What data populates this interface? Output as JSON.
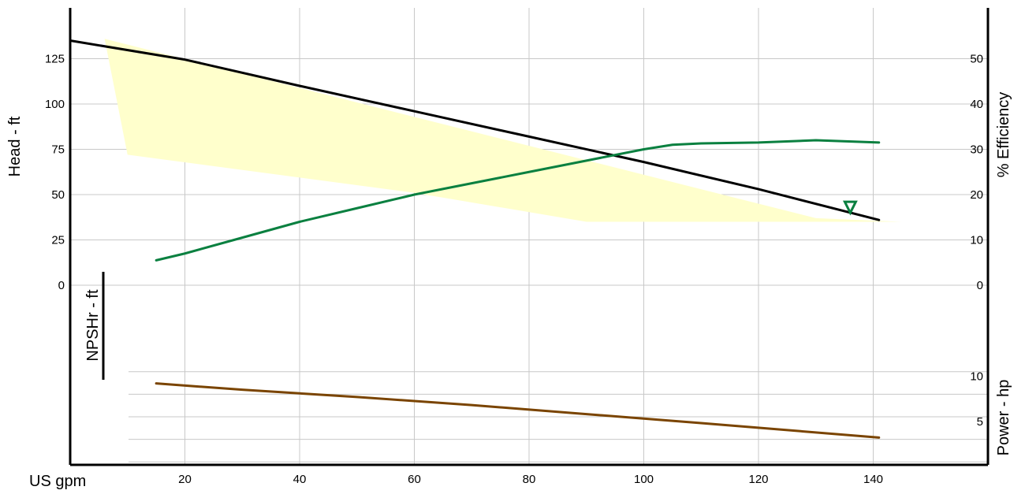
{
  "chart_data": {
    "type": "line",
    "x_axis": {
      "label": "US gpm",
      "range": [
        0,
        160
      ],
      "ticks": [
        20,
        40,
        60,
        80,
        100,
        120,
        140
      ]
    },
    "head_axis": {
      "label": "Head - ft",
      "range": [
        0,
        150
      ],
      "ticks": [
        0,
        25,
        50,
        75,
        100,
        125
      ]
    },
    "efficiency_axis": {
      "label": "% Efficiency",
      "range": [
        0,
        60
      ],
      "ticks": [
        0,
        10,
        20,
        30,
        40,
        50
      ]
    },
    "npshr_axis": {
      "label": "NPSHr - ft",
      "ticks": []
    },
    "power_axis": {
      "label": "Power - hp",
      "range": [
        0,
        15
      ],
      "ticks": [
        5,
        10
      ]
    },
    "grid": true,
    "operating_region": {
      "color": "#ffffcc",
      "points": [
        [
          6,
          136
        ],
        [
          10,
          72
        ],
        [
          60,
          51
        ],
        [
          90,
          35
        ],
        [
          145,
          35
        ],
        [
          130,
          37
        ]
      ]
    },
    "series": [
      {
        "axis": "head",
        "color": "#000000",
        "x": [
          0,
          20,
          40,
          60,
          80,
          100,
          120,
          141
        ],
        "values": [
          135,
          124.5,
          110,
          96,
          82,
          68,
          53,
          36
        ]
      },
      {
        "axis": "efficiency",
        "color": "#0a8040",
        "x": [
          15,
          20,
          30,
          40,
          50,
          60,
          70,
          80,
          90,
          100,
          105,
          110,
          120,
          130,
          141
        ],
        "values": [
          5.5,
          7,
          10.5,
          14,
          17,
          20,
          22.5,
          25,
          27.5,
          30,
          31,
          31.3,
          31.5,
          32,
          31.5
        ]
      },
      {
        "axis": "power",
        "color": "#7a4400",
        "x": [
          15,
          30,
          50,
          70,
          90,
          110,
          141
        ],
        "values": [
          9.2,
          8.5,
          7.7,
          6.8,
          5.8,
          4.8,
          3.2
        ]
      }
    ],
    "marker": {
      "shape": "down-triangle",
      "color": "#0a8040",
      "x": 136,
      "head": 43
    }
  }
}
